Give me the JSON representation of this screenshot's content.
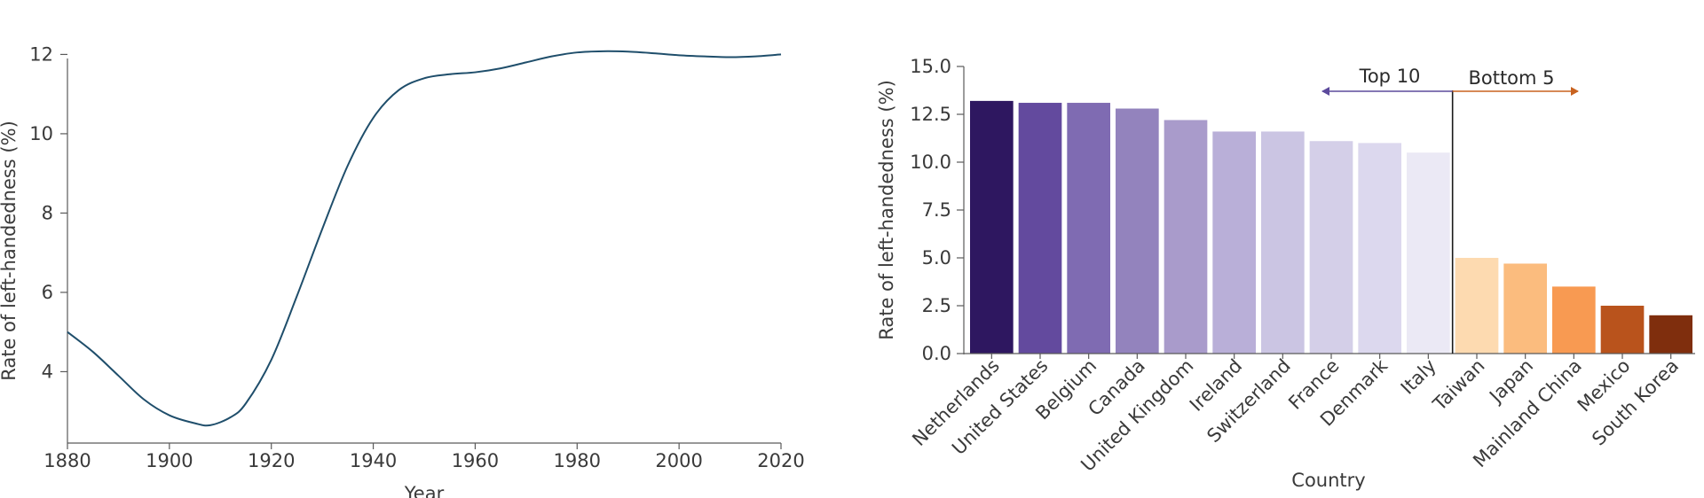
{
  "chart_data": [
    {
      "type": "line",
      "title": "",
      "xlabel": "Year",
      "ylabel": "Rate of left-handedness (%)",
      "xlim": [
        1880,
        2020
      ],
      "ylim": [
        2.2,
        12.3
      ],
      "xticks": [
        1880,
        1900,
        1920,
        1940,
        1960,
        1980,
        2000,
        2020
      ],
      "yticks": [
        4,
        6,
        8,
        10,
        12
      ],
      "line_color": "#1f4e6b",
      "grid": false,
      "series": [
        {
          "x": [
            1880,
            1885,
            1890,
            1895,
            1900,
            1905,
            1908,
            1912,
            1915,
            1920,
            1925,
            1930,
            1935,
            1940,
            1945,
            1950,
            1955,
            1960,
            1965,
            1970,
            1975,
            1980,
            1985,
            1990,
            1995,
            2000,
            2005,
            2010,
            2015,
            2020
          ],
          "y": [
            5.0,
            4.5,
            3.9,
            3.3,
            2.9,
            2.7,
            2.65,
            2.85,
            3.2,
            4.3,
            5.9,
            7.6,
            9.2,
            10.4,
            11.1,
            11.4,
            11.5,
            11.55,
            11.65,
            11.8,
            11.95,
            12.05,
            12.08,
            12.07,
            12.03,
            11.98,
            11.95,
            11.93,
            11.95,
            12.0
          ]
        }
      ]
    },
    {
      "type": "bar",
      "title": "",
      "xlabel": "Country",
      "ylabel": "Rate of left-handedness (%)",
      "ylim": [
        0,
        15
      ],
      "yticks": [
        "0.0",
        "2.5",
        "5.0",
        "7.5",
        "10.0",
        "12.5",
        "15.0"
      ],
      "grid": false,
      "categories": [
        "Netherlands",
        "United States",
        "Belgium",
        "Canada",
        "United Kingdom",
        "Ireland",
        "Switzerland",
        "France",
        "Denmark",
        "Italy",
        "Taiwan",
        "Japan",
        "Mainland China",
        "Mexico",
        "South Korea"
      ],
      "values": [
        13.2,
        13.1,
        13.1,
        12.8,
        12.2,
        11.6,
        11.6,
        11.1,
        11.0,
        10.5,
        5.0,
        4.7,
        3.5,
        2.5,
        2.0
      ],
      "bar_colors": [
        "#2e1760",
        "#634a9e",
        "#7f6bb2",
        "#9383bd",
        "#a99bcb",
        "#b9afd8",
        "#cbc5e3",
        "#d4cfe8",
        "#dcd8ee",
        "#ebe9f5",
        "#fddab0",
        "#fbbc7e",
        "#f89a52",
        "#b9531c",
        "#7f2e0d"
      ],
      "annotations": {
        "top_label": "Top 10",
        "bottom_label": "Bottom 5",
        "top_arrow_color": "#5c4a9c",
        "bottom_arrow_color": "#c8621f"
      }
    }
  ]
}
